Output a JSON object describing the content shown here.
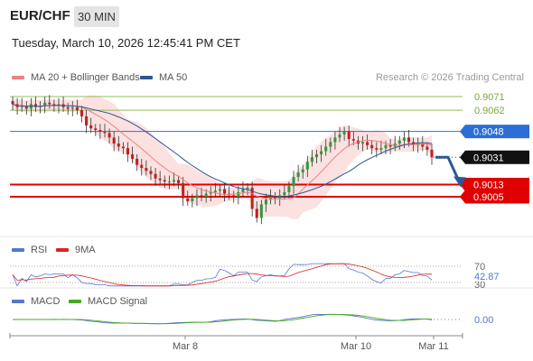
{
  "header": {
    "pair": "EUR/CHF",
    "timeframe": "30 MIN",
    "datetime": "Tuesday, March 10, 2026 12:45:41 PM CET"
  },
  "legend": {
    "ma20": "MA 20 + Bollinger Bands",
    "ma50": "MA 50",
    "credit": "Research © 2026 Trading Central",
    "rsi": "RSI",
    "rsi_ma": "9MA",
    "macd": "MACD",
    "macd_signal": "MACD Signal"
  },
  "colors": {
    "ma20": "#f08080",
    "ma50": "#2b5797",
    "resistance": "#2b6fd6",
    "support": "#e00000",
    "pivot_target": "#8fbf5a",
    "rsi": "#5577cc",
    "rsi_ma": "#dd2222",
    "macd": "#5577cc",
    "macd_signal": "#44aa22"
  },
  "chart_data": [
    {
      "type": "candlestick",
      "title": "EUR/CHF",
      "ylim": [
        0.896,
        0.908
      ],
      "x_ticks": [
        "Mar 8",
        "Mar 10",
        "Mar 11"
      ],
      "levels": [
        {
          "value": 0.9071,
          "label": "0.9071",
          "kind": "target"
        },
        {
          "value": 0.9062,
          "label": "0.9062",
          "kind": "target"
        },
        {
          "value": 0.9048,
          "label": "0.9048",
          "kind": "resistance"
        },
        {
          "value": 0.9031,
          "label": "0.9031",
          "kind": "last"
        },
        {
          "value": 0.9013,
          "label": "0.9013",
          "kind": "support"
        },
        {
          "value": 0.9005,
          "label": "0.9005",
          "kind": "support"
        }
      ],
      "close_series": [
        0.9066,
        0.9064,
        0.9065,
        0.9063,
        0.9066,
        0.9064,
        0.9065,
        0.9067,
        0.9066,
        0.9065,
        0.9066,
        0.9064,
        0.9063,
        0.9064,
        0.9062,
        0.9058,
        0.9052,
        0.905,
        0.9049,
        0.9048,
        0.9047,
        0.9044,
        0.904,
        0.9038,
        0.9037,
        0.9033,
        0.903,
        0.9026,
        0.9024,
        0.9022,
        0.902,
        0.9017,
        0.9016,
        0.9015,
        0.9015,
        0.9016,
        0.9014,
        0.9004,
        0.9002,
        0.9004,
        0.9006,
        0.9005,
        0.9007,
        0.9008,
        0.9009,
        0.901,
        0.9007,
        0.9006,
        0.9005,
        0.9008,
        0.901,
        0.9011,
        0.8997,
        0.8991,
        0.9,
        0.9003,
        0.9005,
        0.9004,
        0.9006,
        0.9008,
        0.9012,
        0.9018,
        0.9021,
        0.9023,
        0.9028,
        0.9031,
        0.9033,
        0.9035,
        0.9038,
        0.9041,
        0.9044,
        0.9046,
        0.9048,
        0.9043,
        0.9042,
        0.904,
        0.9041,
        0.9039,
        0.9037,
        0.9036,
        0.9037,
        0.9039,
        0.9038,
        0.904,
        0.9042,
        0.9044,
        0.9041,
        0.9039,
        0.904,
        0.9038,
        0.9036,
        0.9031
      ]
    },
    {
      "type": "line",
      "title": "RSI",
      "levels": [
        {
          "value": 70,
          "label": "70"
        },
        {
          "value": 30,
          "label": "30"
        }
      ],
      "last_value_label": "42.87",
      "ylim": [
        20,
        80
      ]
    },
    {
      "type": "line",
      "title": "MACD",
      "levels": [
        {
          "value": 0,
          "label": "0.00"
        }
      ]
    }
  ]
}
